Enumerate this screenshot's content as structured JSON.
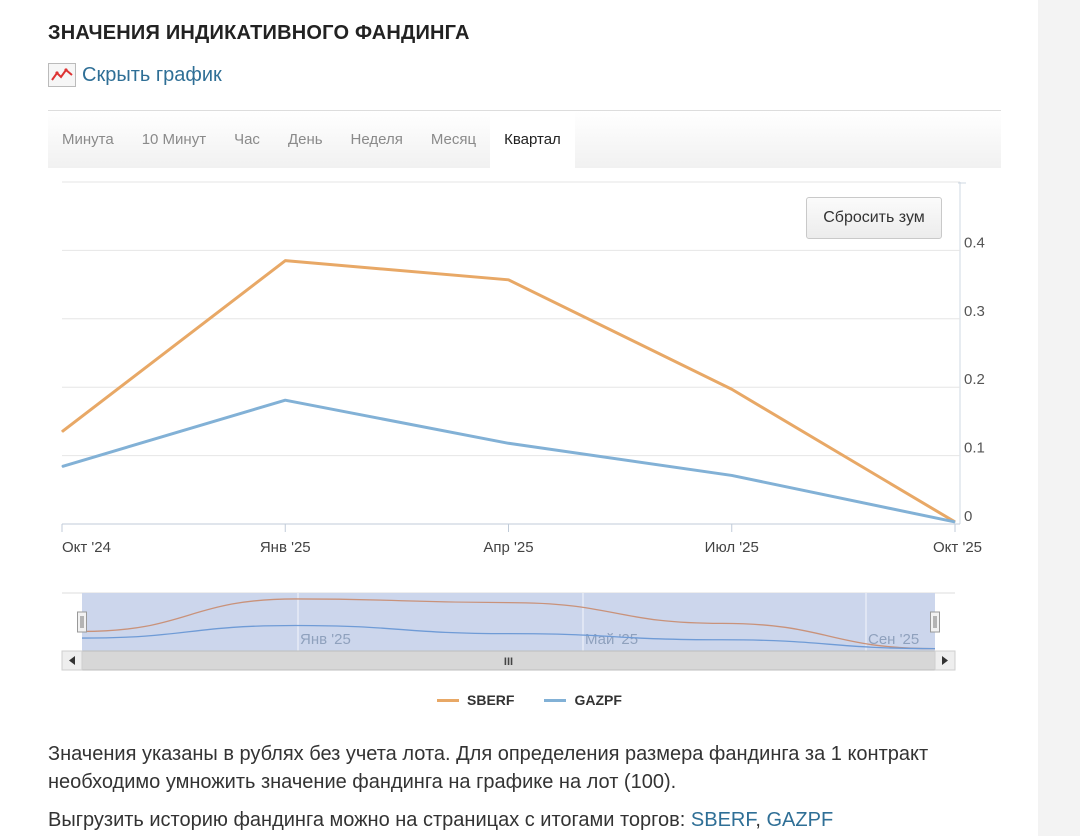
{
  "title": "ЗНАЧЕНИЯ ИНДИКАТИВНОГО ФАНДИНГА",
  "toggle": {
    "label": "Скрыть график",
    "icon": "chart-icon"
  },
  "tabs": [
    {
      "label": "Минута",
      "active": false
    },
    {
      "label": "10 Минут",
      "active": false
    },
    {
      "label": "Час",
      "active": false
    },
    {
      "label": "День",
      "active": false
    },
    {
      "label": "Неделя",
      "active": false
    },
    {
      "label": "Месяц",
      "active": false
    },
    {
      "label": "Квартал",
      "active": true
    }
  ],
  "reset_zoom_label": "Сбросить зум",
  "chart_data": {
    "type": "line",
    "x": [
      "Окт '24",
      "Янв '25",
      "Апр '25",
      "Июл '25",
      "Окт '25"
    ],
    "series": [
      {
        "name": "SBERF",
        "color": "#e8a866",
        "values": [
          0.135,
          0.385,
          0.357,
          0.197,
          0.003
        ]
      },
      {
        "name": "GAZPF",
        "color": "#82b1d6",
        "values": [
          0.084,
          0.181,
          0.118,
          0.071,
          0.003
        ]
      }
    ],
    "yticks": [
      "0",
      "0.1",
      "0.2",
      "0.3",
      "0.4"
    ],
    "ylim": [
      0,
      0.5
    ],
    "y_axis_position": "right",
    "grid": true,
    "legend_position": "bottom-center",
    "navigator": {
      "labels": [
        "Янв '25",
        "Май '25",
        "Сен '25"
      ],
      "scroll_label": "III"
    }
  },
  "note": "Значения указаны в рублях без учета лота. Для определения размера фандинга за 1 контракт необходимо умножить значение фандинга на графике на лот (100).",
  "note2": {
    "text": "Выгрузить историю фандинга можно на страницах с итогами торгов: ",
    "separator": ", ",
    "links": [
      "SBERF",
      "GAZPF"
    ]
  }
}
